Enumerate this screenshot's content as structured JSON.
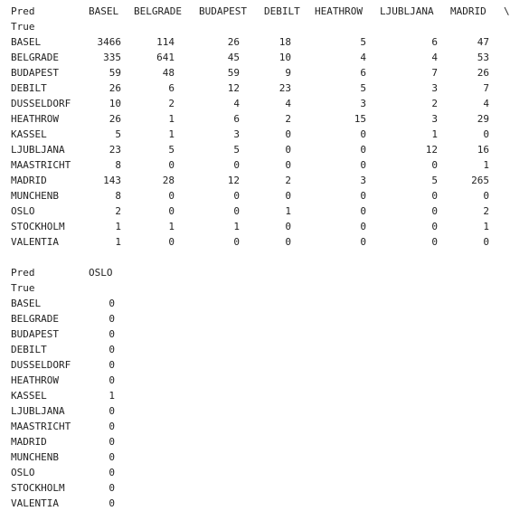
{
  "table1": {
    "pred_label": "Pred",
    "true_label": "True",
    "columns": [
      "BASEL",
      "BELGRADE",
      "BUDAPEST",
      "DEBILT",
      "HEATHROW",
      "LJUBLJANA",
      "MADRID"
    ],
    "continuation": "\\",
    "rows": [
      {
        "label": "BASEL",
        "values": [
          "3466",
          "114",
          "26",
          "18",
          "5",
          "6",
          "47"
        ]
      },
      {
        "label": "BELGRADE",
        "values": [
          "335",
          "641",
          "45",
          "10",
          "4",
          "4",
          "53"
        ]
      },
      {
        "label": "BUDAPEST",
        "values": [
          "59",
          "48",
          "59",
          "9",
          "6",
          "7",
          "26"
        ]
      },
      {
        "label": "DEBILT",
        "values": [
          "26",
          "6",
          "12",
          "23",
          "5",
          "3",
          "7"
        ]
      },
      {
        "label": "DUSSELDORF",
        "values": [
          "10",
          "2",
          "4",
          "4",
          "3",
          "2",
          "4"
        ]
      },
      {
        "label": "HEATHROW",
        "values": [
          "26",
          "1",
          "6",
          "2",
          "15",
          "3",
          "29"
        ]
      },
      {
        "label": "KASSEL",
        "values": [
          "5",
          "1",
          "3",
          "0",
          "0",
          "1",
          "0"
        ]
      },
      {
        "label": "LJUBLJANA",
        "values": [
          "23",
          "5",
          "5",
          "0",
          "0",
          "12",
          "16"
        ]
      },
      {
        "label": "MAASTRICHT",
        "values": [
          "8",
          "0",
          "0",
          "0",
          "0",
          "0",
          "1"
        ]
      },
      {
        "label": "MADRID",
        "values": [
          "143",
          "28",
          "12",
          "2",
          "3",
          "5",
          "265"
        ]
      },
      {
        "label": "MUNCHENB",
        "values": [
          "8",
          "0",
          "0",
          "0",
          "0",
          "0",
          "0"
        ]
      },
      {
        "label": "OSLO",
        "values": [
          "2",
          "0",
          "0",
          "1",
          "0",
          "0",
          "2"
        ]
      },
      {
        "label": "STOCKHOLM",
        "values": [
          "1",
          "1",
          "1",
          "0",
          "0",
          "0",
          "1"
        ]
      },
      {
        "label": "VALENTIA",
        "values": [
          "1",
          "0",
          "0",
          "0",
          "0",
          "0",
          "0"
        ]
      }
    ]
  },
  "table2": {
    "pred_label": "Pred",
    "true_label": "True",
    "columns": [
      "OSLO"
    ],
    "rows": [
      {
        "label": "BASEL",
        "values": [
          "0"
        ]
      },
      {
        "label": "BELGRADE",
        "values": [
          "0"
        ]
      },
      {
        "label": "BUDAPEST",
        "values": [
          "0"
        ]
      },
      {
        "label": "DEBILT",
        "values": [
          "0"
        ]
      },
      {
        "label": "DUSSELDORF",
        "values": [
          "0"
        ]
      },
      {
        "label": "HEATHROW",
        "values": [
          "0"
        ]
      },
      {
        "label": "KASSEL",
        "values": [
          "1"
        ]
      },
      {
        "label": "LJUBLJANA",
        "values": [
          "0"
        ]
      },
      {
        "label": "MAASTRICHT",
        "values": [
          "0"
        ]
      },
      {
        "label": "MADRID",
        "values": [
          "0"
        ]
      },
      {
        "label": "MUNCHENB",
        "values": [
          "0"
        ]
      },
      {
        "label": "OSLO",
        "values": [
          "0"
        ]
      },
      {
        "label": "STOCKHOLM",
        "values": [
          "0"
        ]
      },
      {
        "label": "VALENTIA",
        "values": [
          "0"
        ]
      }
    ]
  }
}
